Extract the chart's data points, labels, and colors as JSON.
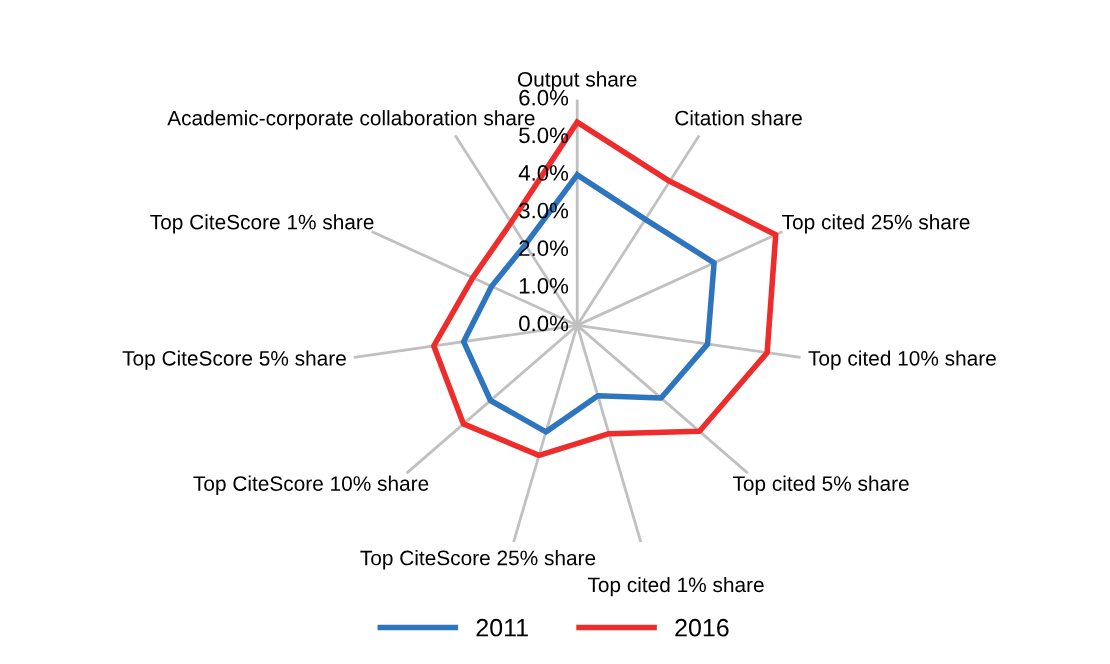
{
  "chart_data": {
    "type": "radar",
    "categories": [
      "Output share",
      "Citation share",
      "Top cited 25% share",
      "Top cited 10% share",
      "Top cited 5% share",
      "Top cited 1% share",
      "Top CiteScore 25% share",
      "Top CiteScore 10% share",
      "Top CiteScore 5% share",
      "Top CiteScore 1% share",
      "Academic-corporate collaboration share"
    ],
    "series": [
      {
        "name": "2011",
        "color": "#2e75c0",
        "values": [
          4.0,
          3.35,
          4.0,
          3.5,
          2.95,
          1.95,
          2.95,
          3.05,
          3.05,
          2.5,
          2.55
        ]
      },
      {
        "name": "2016",
        "color": "#ee2c2c",
        "values": [
          5.4,
          4.55,
          5.8,
          5.1,
          4.3,
          3.0,
          3.6,
          4.0,
          3.85,
          3.05,
          3.25
        ]
      }
    ],
    "ylim": [
      0,
      6
    ],
    "yticks": [
      {
        "value": 0,
        "label": "0.0%"
      },
      {
        "value": 1,
        "label": "1.0%"
      },
      {
        "value": 2,
        "label": "2.0%"
      },
      {
        "value": 3,
        "label": "3.0%"
      },
      {
        "value": 4,
        "label": "4.0%"
      },
      {
        "value": 5,
        "label": "5.0%"
      },
      {
        "value": 6,
        "label": "6.0%"
      }
    ],
    "grid": "x",
    "legend": "bottom",
    "marker": "none",
    "line_style": "solid"
  }
}
